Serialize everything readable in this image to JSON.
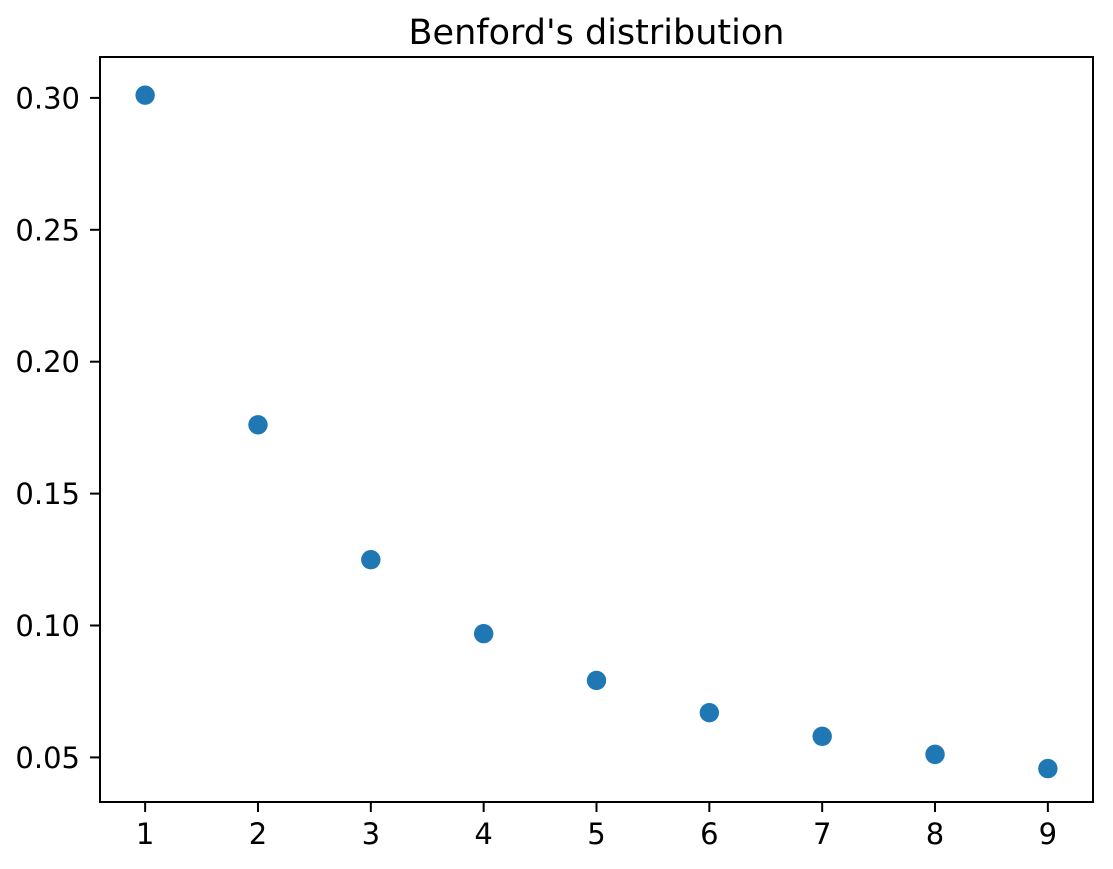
{
  "figure": {
    "background": "#ffffff"
  },
  "chart_data": {
    "type": "scatter",
    "title": "Benford's distribution",
    "x": [
      1,
      2,
      3,
      4,
      5,
      6,
      7,
      8,
      9
    ],
    "y": [
      0.30103,
      0.17609,
      0.12494,
      0.09691,
      0.07918,
      0.06695,
      0.05799,
      0.05115,
      0.04576
    ],
    "xlabel": "",
    "ylabel": "",
    "xlim": [
      0.6,
      9.4
    ],
    "ylim": [
      0.0331,
      0.3155
    ],
    "xticks": {
      "values": [
        1,
        2,
        3,
        4,
        5,
        6,
        7,
        8,
        9
      ],
      "labels": [
        "1",
        "2",
        "3",
        "4",
        "5",
        "6",
        "7",
        "8",
        "9"
      ]
    },
    "yticks": {
      "values": [
        0.05,
        0.1,
        0.15,
        0.2,
        0.25,
        0.3
      ],
      "labels": [
        "0.05",
        "0.10",
        "0.15",
        "0.20",
        "0.25",
        "0.30"
      ]
    },
    "grid": false,
    "legend_position": "none",
    "marker_color": "#1f77b4",
    "marker_diameter_px": 19.4,
    "axis_color": "#000000",
    "text_color": "#000000"
  }
}
